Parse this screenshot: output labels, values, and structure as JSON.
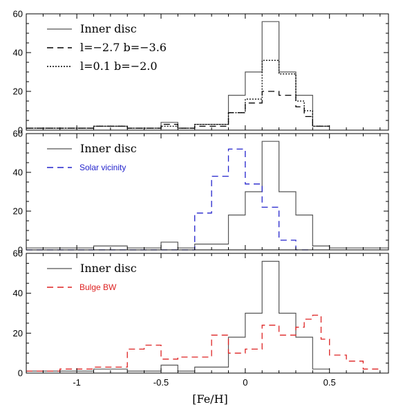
{
  "figure": {
    "xlabel": "[Fe/H]",
    "colors": {
      "inner": "#555555",
      "solar": "#2222cc",
      "bulge": "#dd2222"
    }
  },
  "chart_data": [
    {
      "type": "histogram",
      "xlim": [
        -1.3,
        0.85
      ],
      "ylim": [
        0,
        60
      ],
      "x_ticks": [
        -1,
        -0.5,
        0,
        0.5
      ],
      "y_ticks": [
        0,
        20,
        40,
        60
      ],
      "show_x_tick_labels": false,
      "series": [
        {
          "name": "Inner disc",
          "style": "solid",
          "color": "#555555",
          "bin_edges": [
            -1.3,
            -1.1,
            -0.9,
            -0.7,
            -0.5,
            -0.4,
            -0.3,
            -0.1,
            0.0,
            0.1,
            0.2,
            0.3,
            0.4,
            0.5
          ],
          "counts": [
            1,
            1,
            2,
            1,
            4,
            1,
            3,
            18,
            30,
            56,
            30,
            18,
            2
          ]
        },
        {
          "name": "l=−2.7  b=−3.6",
          "style": "dashed",
          "color": "#000000",
          "bin_edges": [
            -1.3,
            -1.1,
            -0.9,
            -0.7,
            -0.5,
            -0.4,
            -0.3,
            -0.1,
            0.0,
            0.1,
            0.2,
            0.3,
            0.35,
            0.4,
            0.5
          ],
          "counts": [
            1,
            1,
            2,
            1,
            3,
            1,
            2,
            9,
            14,
            20,
            18,
            12,
            7,
            2
          ]
        },
        {
          "name": "l=0.1  b=−2.0",
          "style": "dotted",
          "color": "#000000",
          "bin_edges": [
            -1.3,
            -1.1,
            -0.9,
            -0.7,
            -0.5,
            -0.4,
            -0.3,
            -0.1,
            0.0,
            0.1,
            0.2,
            0.3,
            0.35,
            0.4,
            0.5
          ],
          "counts": [
            1,
            1,
            2,
            1,
            2,
            1,
            3,
            9,
            16,
            36,
            29,
            15,
            10,
            2
          ]
        }
      ],
      "legend": [
        {
          "label": "Inner disc",
          "style": "solid",
          "color": "#555555",
          "font": "serif"
        },
        {
          "label": "l=−2.7  b=−3.6",
          "style": "dashed",
          "color": "#000000",
          "font": "serif"
        },
        {
          "label": "l=0.1  b=−2.0",
          "style": "dotted",
          "color": "#000000",
          "font": "serif"
        }
      ]
    },
    {
      "type": "histogram",
      "xlim": [
        -1.3,
        0.85
      ],
      "ylim": [
        0,
        60
      ],
      "x_ticks": [
        -1,
        -0.5,
        0,
        0.5
      ],
      "y_ticks": [
        0,
        20,
        40,
        60
      ],
      "show_x_tick_labels": false,
      "series": [
        {
          "name": "Inner disc",
          "style": "solid",
          "color": "#555555",
          "bin_edges": [
            -1.3,
            -1.1,
            -0.9,
            -0.7,
            -0.5,
            -0.4,
            -0.3,
            -0.1,
            0.0,
            0.1,
            0.2,
            0.3,
            0.4,
            0.5,
            0.85
          ],
          "counts": [
            1,
            1,
            2,
            1,
            4,
            1,
            3,
            18,
            30,
            56,
            30,
            18,
            2,
            1
          ]
        },
        {
          "name": "Solar vicinity",
          "style": "dashed",
          "color": "#2222cc",
          "bin_edges": [
            -1.3,
            -0.3,
            -0.2,
            -0.1,
            0.0,
            0.1,
            0.2,
            0.3,
            0.4
          ],
          "counts": [
            0,
            19,
            38,
            52,
            34,
            22,
            5,
            0
          ]
        }
      ],
      "legend": [
        {
          "label": "Inner disc",
          "style": "solid",
          "color": "#555555",
          "font": "serif"
        },
        {
          "label": "Solar vicinity",
          "style": "dashed",
          "color": "#2222cc",
          "font": "sans"
        }
      ]
    },
    {
      "type": "histogram",
      "xlim": [
        -1.3,
        0.85
      ],
      "ylim": [
        0,
        60
      ],
      "x_ticks": [
        -1,
        -0.5,
        0,
        0.5
      ],
      "y_ticks": [
        0,
        20,
        40,
        60
      ],
      "show_x_tick_labels": true,
      "series": [
        {
          "name": "Inner disc",
          "style": "solid",
          "color": "#555555",
          "bin_edges": [
            -1.3,
            -1.1,
            -0.9,
            -0.7,
            -0.5,
            -0.4,
            -0.3,
            -0.1,
            0.0,
            0.1,
            0.2,
            0.3,
            0.4,
            0.5
          ],
          "counts": [
            1,
            1,
            2,
            1,
            4,
            1,
            3,
            18,
            30,
            56,
            30,
            18,
            2
          ]
        },
        {
          "name": "Bulge BW",
          "style": "dashed",
          "color": "#dd2222",
          "bin_edges": [
            -1.3,
            -1.1,
            -0.9,
            -0.7,
            -0.6,
            -0.5,
            -0.4,
            -0.3,
            -0.2,
            -0.1,
            0.0,
            0.1,
            0.2,
            0.3,
            0.35,
            0.4,
            0.45,
            0.5,
            0.6,
            0.7,
            0.8
          ],
          "counts": [
            1,
            2,
            3,
            12,
            14,
            7,
            8,
            8,
            19,
            10,
            12,
            24,
            19,
            23,
            27,
            29,
            17,
            9,
            6,
            2
          ]
        }
      ],
      "legend": [
        {
          "label": "Inner disc",
          "style": "solid",
          "color": "#555555",
          "font": "serif"
        },
        {
          "label": "Bulge BW",
          "style": "dashed",
          "color": "#dd2222",
          "font": "sans"
        }
      ]
    }
  ]
}
